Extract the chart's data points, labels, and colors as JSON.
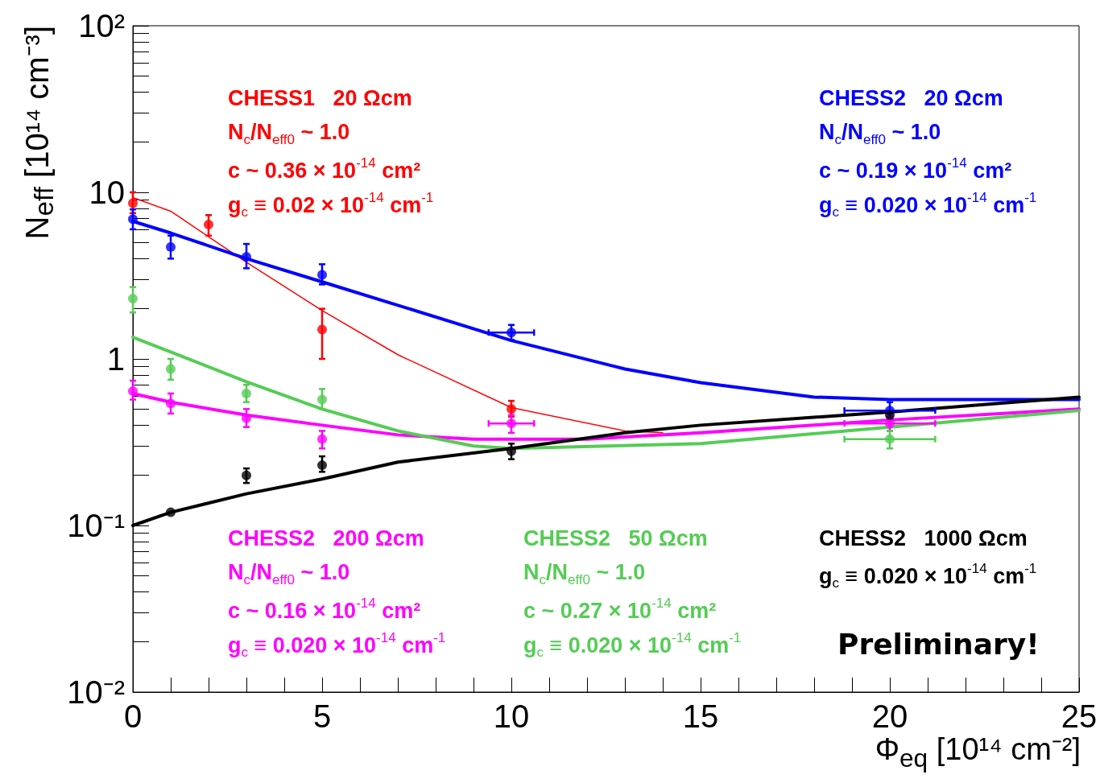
{
  "chart_data": {
    "type": "scatter",
    "xlabel": "Φ$_{eq}$ [10¹⁴ cm⁻²]",
    "ylabel": "N$_{eff}$ [10¹⁴ cm⁻³]",
    "xlim": [
      0,
      25
    ],
    "xticks": [
      0,
      5,
      10,
      15,
      20,
      25
    ],
    "ylim": [
      0.01,
      100
    ],
    "yticks": [
      {
        "value": 0.01,
        "label": "10⁻²"
      },
      {
        "value": 0.1,
        "label": "10⁻¹"
      },
      1,
      10,
      {
        "value": 100,
        "label": "10²"
      }
    ],
    "log": "y",
    "grid": false,
    "legend": false,
    "marker": "circle",
    "series": [
      {
        "name": "CHESS1   20 Ωcm",
        "color": "#ff0000",
        "x": [
          0,
          2,
          5,
          10
        ],
        "values": [
          8.6,
          6.4,
          1.5,
          0.5
        ],
        "errors": [
          [
            7.5,
            10
          ],
          [
            5.5,
            7.3
          ],
          [
            1.0,
            2.0
          ],
          [
            0.45,
            0.56
          ]
        ]
      },
      {
        "name": "CHESS2   20 Ωcm",
        "color": "#0000ff",
        "x": [
          0,
          1,
          3,
          5,
          10,
          20
        ],
        "values": [
          6.9,
          4.7,
          4.1,
          3.2,
          1.44,
          0.49
        ],
        "errors": [
          [
            6.0,
            7.9
          ],
          [
            4.0,
            5.5
          ],
          [
            3.5,
            4.9
          ],
          [
            2.8,
            3.7
          ],
          [
            1.3,
            1.6
          ],
          [
            0.44,
            0.55
          ]
        ],
        "xerrors": [
          null,
          null,
          null,
          null,
          0.6,
          1.2
        ]
      },
      {
        "name": "CHESS2   200 Ωcm",
        "color": "#ff00ff",
        "x": [
          0,
          1,
          3,
          5,
          10,
          20
        ],
        "values": [
          0.64,
          0.54,
          0.44,
          0.33,
          0.41,
          0.41
        ],
        "errors": [
          [
            0.57,
            0.74
          ],
          [
            0.47,
            0.62
          ],
          [
            0.39,
            0.5
          ],
          [
            0.29,
            0.37
          ],
          [
            0.36,
            0.46
          ],
          [
            0.37,
            0.45
          ]
        ],
        "xerrors": [
          null,
          null,
          null,
          null,
          0.6,
          1.2
        ]
      },
      {
        "name": "CHESS2   50 Ωcm",
        "color": "#55cc55",
        "x": [
          0,
          1,
          3,
          5,
          20
        ],
        "values": [
          2.3,
          0.87,
          0.62,
          0.57,
          0.33
        ],
        "errors": [
          [
            1.9,
            2.7
          ],
          [
            0.75,
            1.0
          ],
          [
            0.55,
            0.7
          ],
          [
            0.5,
            0.66
          ],
          [
            0.29,
            0.37
          ]
        ],
        "xerrors": [
          null,
          null,
          null,
          null,
          1.2
        ]
      },
      {
        "name": "CHESS2   1000 Ωcm",
        "color": "#000000",
        "x": [
          1,
          3,
          5,
          10,
          20
        ],
        "values": [
          0.12,
          0.2,
          0.23,
          0.28,
          0.46
        ],
        "errors": [
          null,
          [
            0.18,
            0.22
          ],
          [
            0.21,
            0.26
          ],
          [
            0.25,
            0.31
          ],
          null
        ]
      },
      {
        "type": "line",
        "marker": "none",
        "color": "#ff0000",
        "x": [
          0,
          1,
          3,
          5,
          7,
          10,
          13,
          14
        ],
        "values": [
          9.3,
          7.7,
          3.8,
          1.95,
          1.06,
          0.51,
          0.37,
          0.36
        ]
      },
      {
        "type": "line",
        "marker": "none",
        "color": "#0000ff",
        "x": [
          0,
          1,
          3,
          5,
          7,
          10,
          13,
          15,
          18,
          20,
          25
        ],
        "values": [
          6.7,
          5.7,
          4.0,
          2.9,
          2.1,
          1.29,
          0.87,
          0.72,
          0.59,
          0.57,
          0.57
        ]
      },
      {
        "type": "line",
        "marker": "none",
        "color": "#ff00ff",
        "x": [
          0,
          1,
          3,
          5,
          7,
          9,
          12,
          15,
          20,
          25
        ],
        "values": [
          0.62,
          0.55,
          0.46,
          0.4,
          0.35,
          0.33,
          0.33,
          0.36,
          0.43,
          0.5
        ]
      },
      {
        "type": "line",
        "marker": "none",
        "color": "#55cc55",
        "x": [
          0,
          1,
          3,
          5,
          7,
          9,
          10,
          15,
          20,
          25
        ],
        "values": [
          1.35,
          1.1,
          0.73,
          0.5,
          0.37,
          0.3,
          0.29,
          0.31,
          0.39,
          0.49
        ]
      },
      {
        "type": "line",
        "marker": "none",
        "color": "#000000",
        "x": [
          0,
          1,
          3,
          5,
          7,
          10,
          13,
          15,
          20,
          25
        ],
        "values": [
          0.1,
          0.12,
          0.155,
          0.19,
          0.24,
          0.29,
          0.36,
          0.4,
          0.48,
          0.59
        ]
      }
    ],
    "annotations": [
      "N$_{c}$/N$_{eff0}$ ~ 1.0",
      "c ~ 0.36 × 10$^{-14}$ cm²",
      "g$_{c}$ ≡ 0.02 × 10$^{-14}$ cm$^{-1}$",
      "N$_{c}$/N$_{eff0}$ ~ 1.0",
      "c ~ 0.19 × 10$^{-14}$ cm²",
      "g$_{c}$ ≡ 0.020 × 10$^{-14}$ cm$^{-1}$",
      "N$_{c}$/N$_{eff0}$ ~ 1.0",
      "c ~ 0.16 × 10$^{-14}$ cm²",
      "g$_{c}$ ≡ 0.020 × 10$^{-14}$ cm$^{-1}$",
      "N$_{c}$/N$_{eff0}$ ~ 1.0",
      "c ~ 0.27 × 10$^{-14}$ cm²",
      "g$_{c}$ ≡ 0.020 × 10$^{-14}$ cm$^{-1}$",
      "g$_{c}$ ≡ 0.020 × 10$^{-14}$ cm$^{-1}$",
      "Preliminary!"
    ]
  }
}
